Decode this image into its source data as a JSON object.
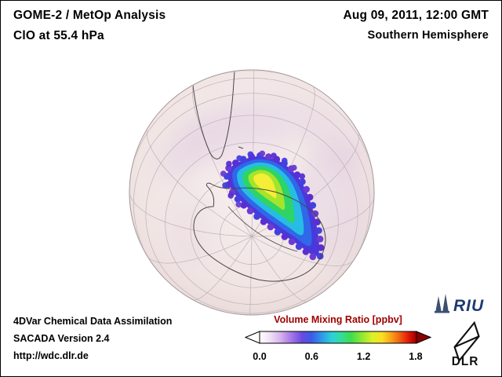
{
  "header": {
    "title_line1": "GOME-2 / MetOp Analysis",
    "title_line2": "ClO at 55.4 hPa",
    "datetime": "Aug 09, 2011, 12:00 GMT",
    "region": "Southern Hemisphere"
  },
  "footer": {
    "line1": "4DVar Chemical Data Assimilation",
    "line2": "SACADA Version 2.4",
    "line3": "http://wdc.dlr.de"
  },
  "colorbar": {
    "title": "Volume Mixing Ratio [ppbv]",
    "title_color": "#a00000",
    "range_max": 1.81,
    "ticks": [
      {
        "label": "0.0",
        "value": 0.0
      },
      {
        "label": "0.6",
        "value": 0.6
      },
      {
        "label": "1.2",
        "value": 1.2
      },
      {
        "label": "1.8",
        "value": 1.8
      }
    ],
    "arrow_left_color": "#ffffff",
    "arrow_right_color": "#8b0000",
    "stops": [
      {
        "o": 0.0,
        "c": "#ffffff"
      },
      {
        "o": 0.06,
        "c": "#f2e4f6"
      },
      {
        "o": 0.13,
        "c": "#d8b4ee"
      },
      {
        "o": 0.2,
        "c": "#a878e8"
      },
      {
        "o": 0.27,
        "c": "#6a4ae0"
      },
      {
        "o": 0.33,
        "c": "#3c5ae8"
      },
      {
        "o": 0.4,
        "c": "#2e9ce8"
      },
      {
        "o": 0.46,
        "c": "#2cd0d8"
      },
      {
        "o": 0.52,
        "c": "#34dc9a"
      },
      {
        "o": 0.58,
        "c": "#3cdc50"
      },
      {
        "o": 0.65,
        "c": "#8ce832"
      },
      {
        "o": 0.72,
        "c": "#dcf028"
      },
      {
        "o": 0.78,
        "c": "#f8e020"
      },
      {
        "o": 0.84,
        "c": "#f8a018"
      },
      {
        "o": 0.9,
        "c": "#f05810"
      },
      {
        "o": 0.95,
        "c": "#e01808"
      },
      {
        "o": 1.0,
        "c": "#980000"
      }
    ]
  },
  "map": {
    "ocean_color": "#f2e8e7",
    "haze_color": "#c9a9da",
    "coast_color": "#4a464a",
    "blob_band_colors": [
      "#4b38da",
      "#2f68e8",
      "#27bce4",
      "#2ed465",
      "#a4e42a",
      "#f4ee36"
    ],
    "dot_colors": [
      "#5a2ed2",
      "#4340e0",
      "#6c3bd2"
    ]
  },
  "logos": {
    "riu_text": "RIU",
    "riu_color": "#1f3a70",
    "dlr_text": "DLR",
    "dlr_color": "#111111"
  }
}
